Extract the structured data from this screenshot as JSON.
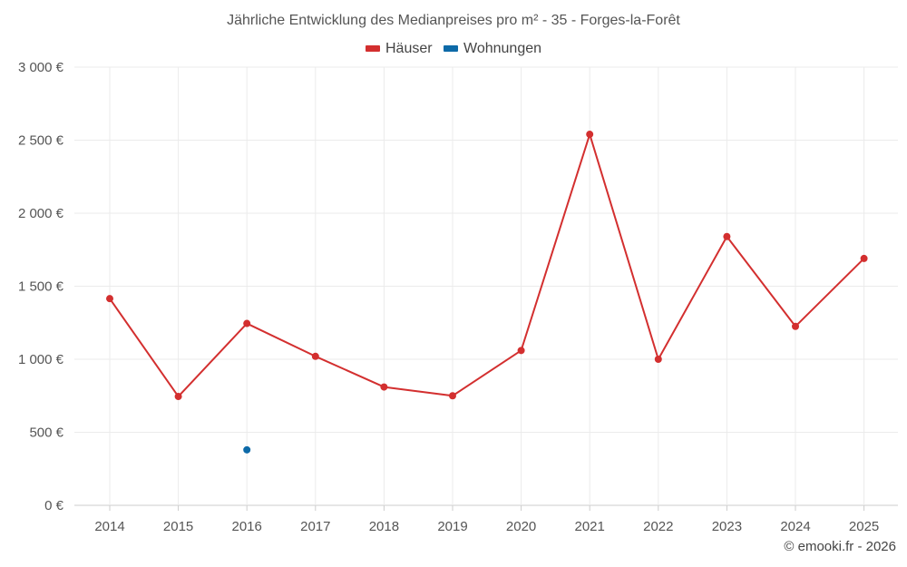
{
  "chart_data": {
    "type": "line",
    "title": "Jährliche Entwicklung des Medianpreises pro m² - 35 - Forges-la-Forêt",
    "x": [
      "2014",
      "2015",
      "2016",
      "2017",
      "2018",
      "2019",
      "2020",
      "2021",
      "2022",
      "2023",
      "2024",
      "2025"
    ],
    "series": [
      {
        "name": "Häuser",
        "color": "#d32f2f",
        "values": [
          1415,
          745,
          1245,
          1020,
          810,
          750,
          1060,
          2540,
          1000,
          1840,
          1225,
          1690
        ]
      },
      {
        "name": "Wohnungen",
        "color": "#0d6aa8",
        "values": [
          null,
          null,
          380,
          null,
          null,
          null,
          null,
          null,
          null,
          null,
          null,
          null
        ]
      }
    ],
    "ylim": [
      0,
      3000
    ],
    "yticks": [
      0,
      500,
      1000,
      1500,
      2000,
      2500,
      3000
    ],
    "ytick_labels": [
      "0 €",
      "500 €",
      "1 000 €",
      "1 500 €",
      "2 000 €",
      "2 500 €",
      "3 000 €"
    ],
    "grid": true,
    "legend_position": "top-center",
    "xlabel": "",
    "ylabel": ""
  },
  "credit": "© emooki.fr - 2026"
}
